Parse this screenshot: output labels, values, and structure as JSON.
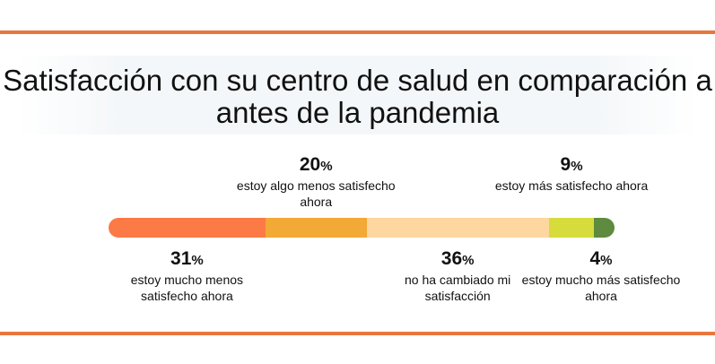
{
  "chart_data": {
    "type": "bar",
    "stacked": true,
    "orientation": "horizontal",
    "title": "Satisfacción con su centro de salud en comparación a antes de la pandemia",
    "unit": "%",
    "categories": [
      "estoy mucho menos satisfecho ahora",
      "estoy algo menos satisfecho ahora",
      "no ha cambiado mi satisfacción",
      "estoy más satisfecho ahora",
      "estoy mucho más satisfecho ahora"
    ],
    "values": [
      31,
      20,
      36,
      9,
      4
    ],
    "colors": [
      "#fb7a45",
      "#f2a935",
      "#fdd6a0",
      "#d6dc3c",
      "#5e8b3f"
    ],
    "label_positions": [
      "below",
      "above",
      "below",
      "above",
      "below"
    ]
  },
  "accent_color": "#e8773f"
}
